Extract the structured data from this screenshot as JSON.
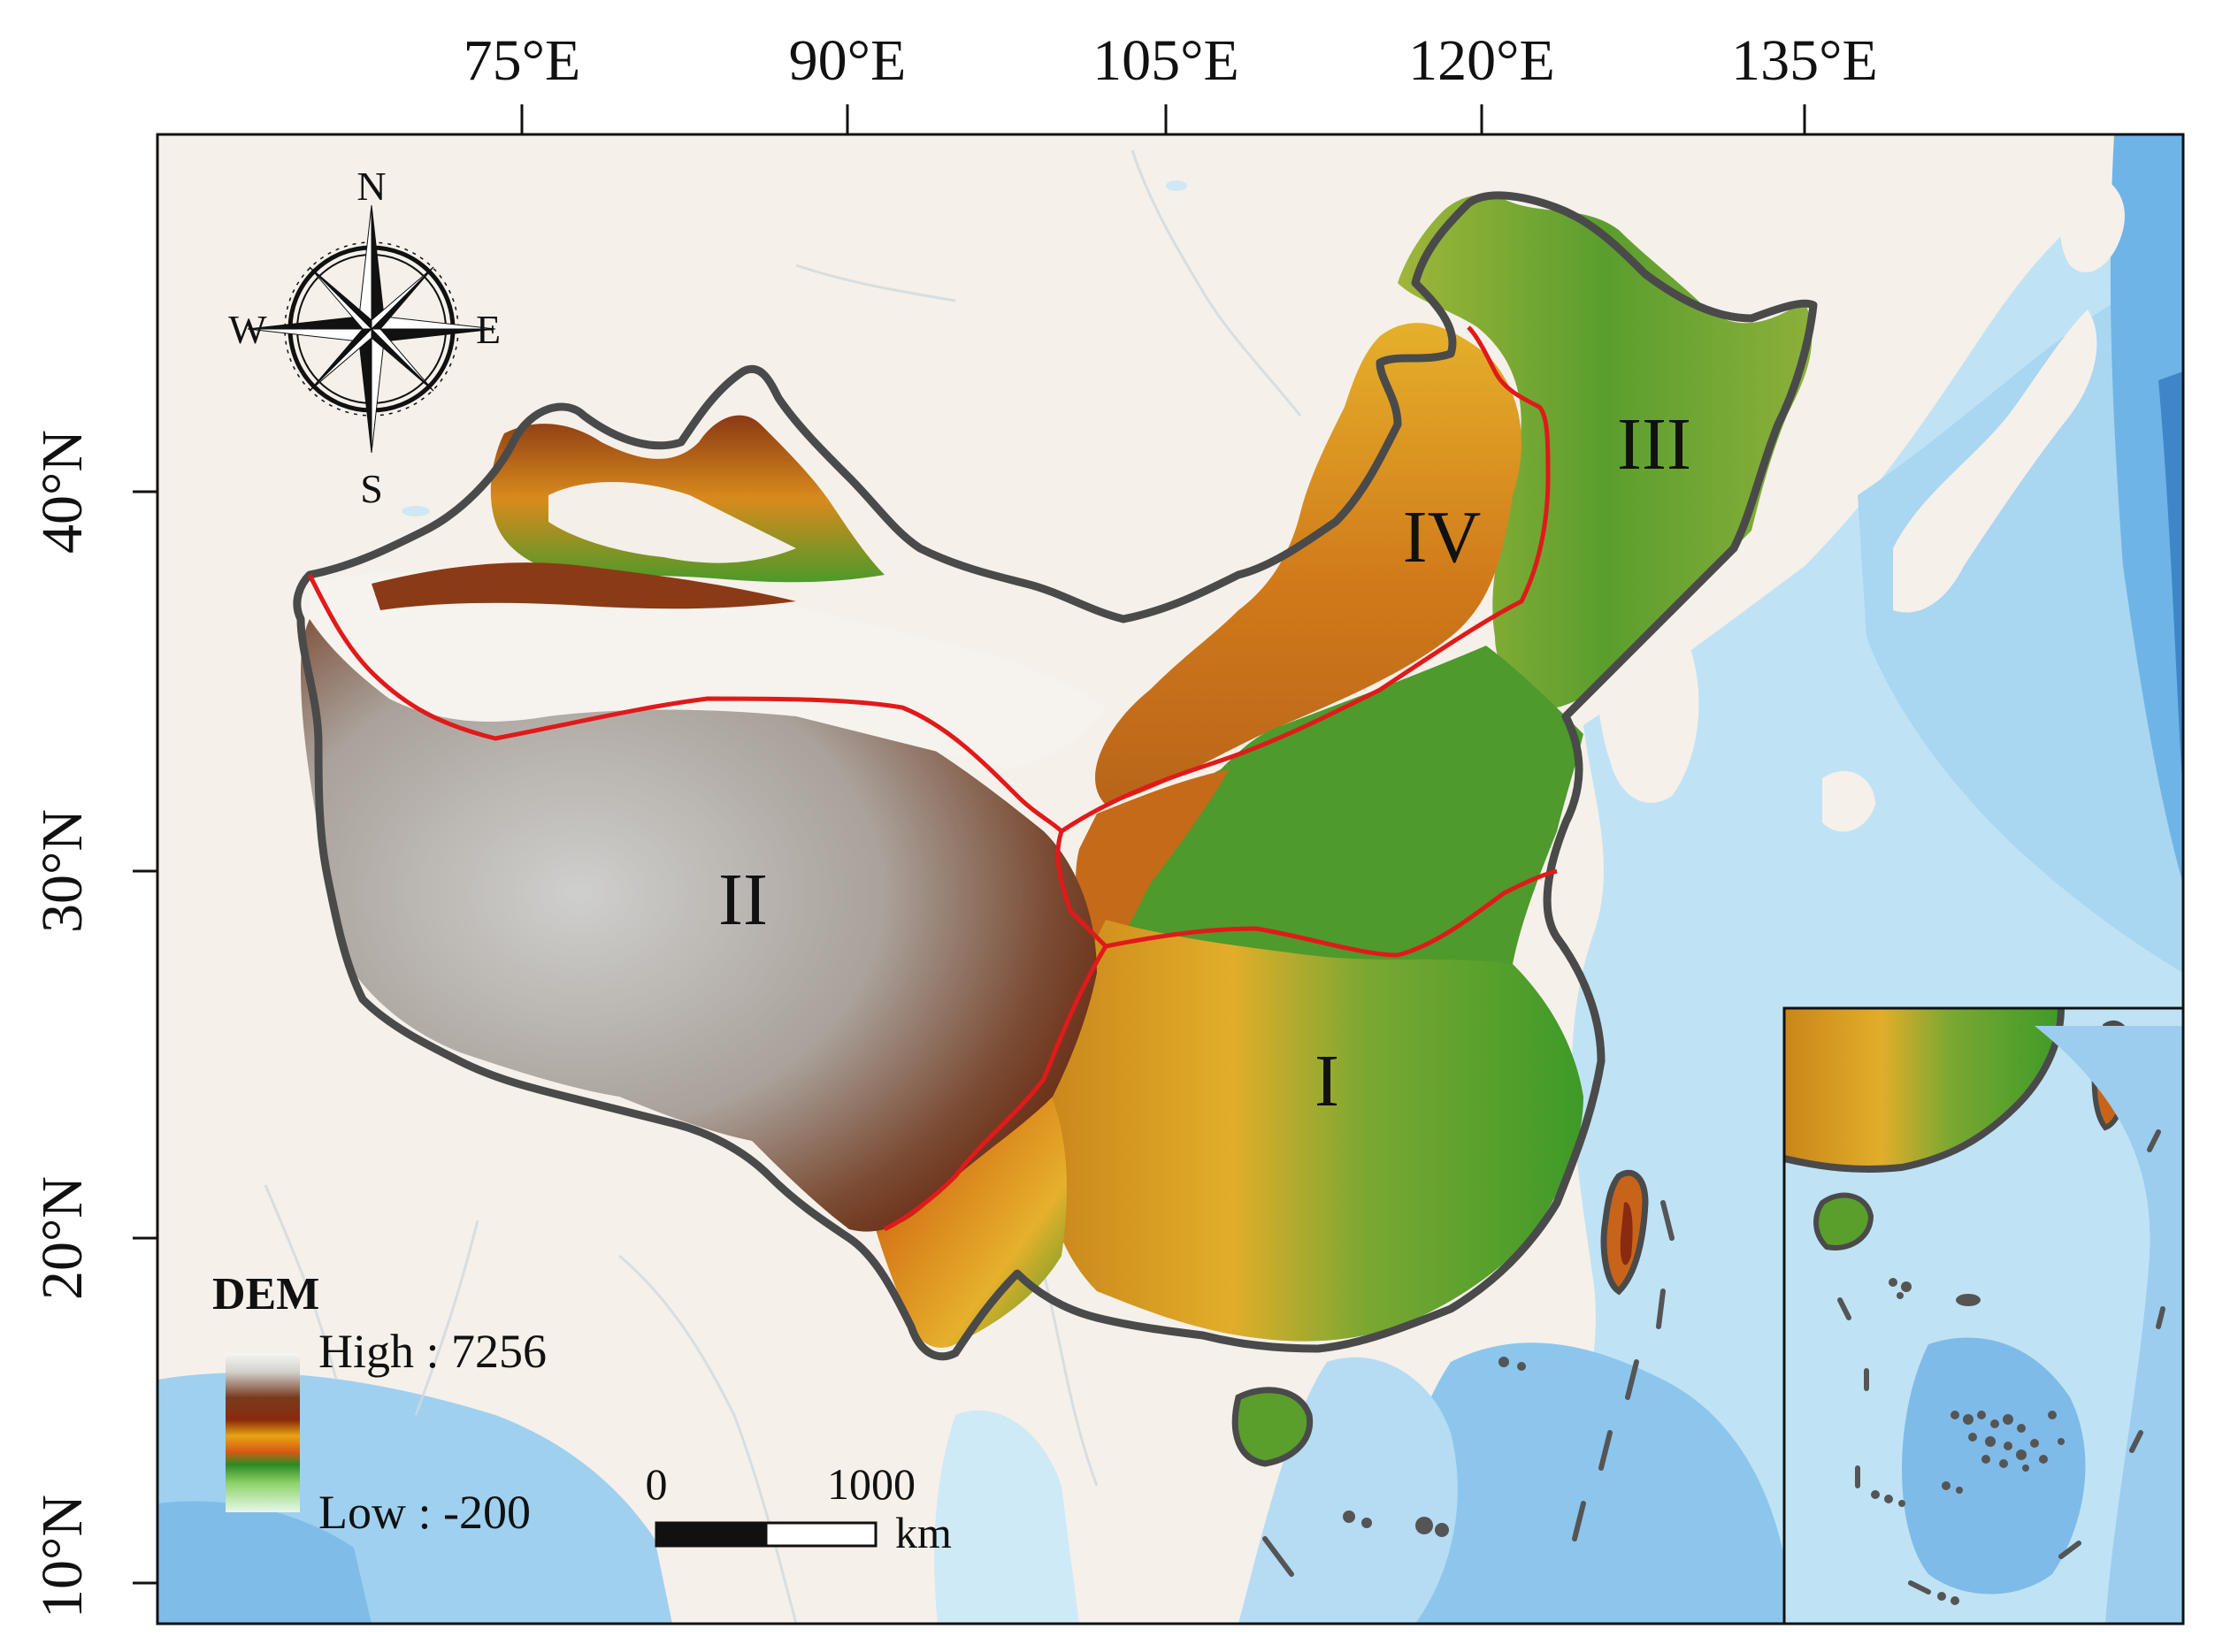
{
  "map": {
    "longitude_ticks": [
      "75°E",
      "90°E",
      "105°E",
      "120°E",
      "135°E"
    ],
    "latitude_ticks": [
      "40°N",
      "30°N",
      "20°N",
      "10°N"
    ],
    "regions": [
      "I",
      "II",
      "III",
      "IV"
    ],
    "compass": {
      "north": "N",
      "south": "S",
      "east": "E",
      "west": "W"
    },
    "legend": {
      "title": "DEM",
      "high_label": "High : 7256",
      "low_label": "Low : -200",
      "colors": [
        "#dededc",
        "#f4f2ee",
        "#6e3318",
        "#8a2c0e",
        "#e9a112",
        "#e05a12",
        "#2f8c22",
        "#8fd36b",
        "#eaf8e8"
      ]
    },
    "scale_bar": {
      "start": "0",
      "end": "1000",
      "unit": "km"
    },
    "colors": {
      "boundary": "#4a4a4a",
      "region_divider": "#e01a1a",
      "sea_light": "#bfe3f5",
      "sea_deep": "#6fb4e6",
      "land_background": "#f6f0ea"
    }
  }
}
